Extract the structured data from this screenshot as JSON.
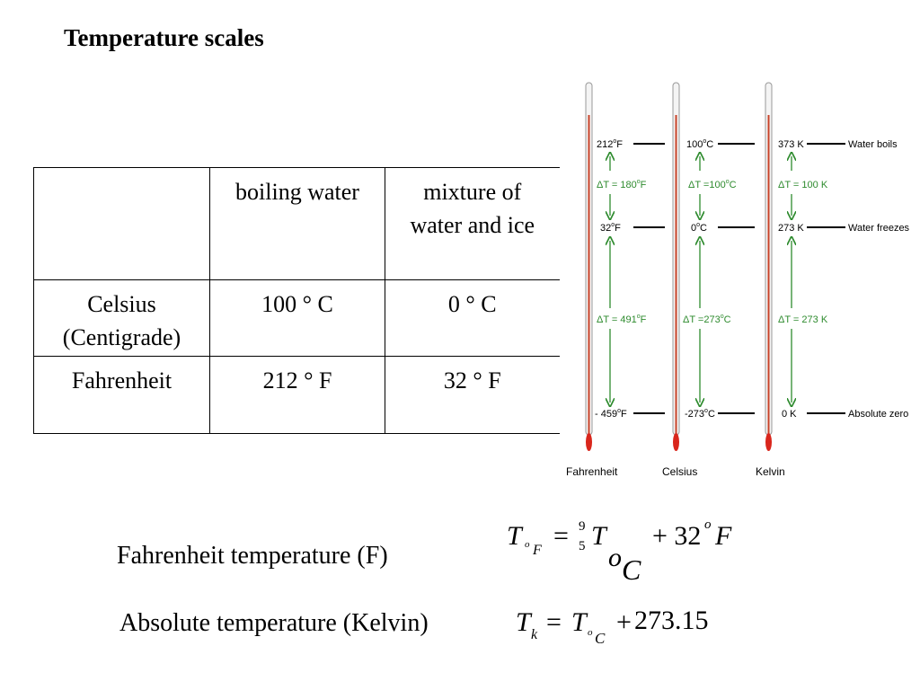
{
  "title": "Temperature  scales",
  "table": {
    "headers": [
      "",
      "boiling water",
      "mixture of water and ice"
    ],
    "rows": [
      {
        "scale": "Celsius (Centigrade)",
        "boiling": "100 ° C",
        "freezing": "0 ° C"
      },
      {
        "scale": "Fahrenheit",
        "boiling": "212 ° F",
        "freezing": "32 ° F"
      }
    ],
    "header_lines": {
      "boiling": "boiling water",
      "mix_1": "mixture of",
      "mix_2": "water and ice"
    },
    "row_lines": {
      "celsius_1": "Celsius",
      "celsius_2": "(Centigrade)"
    }
  },
  "thermometers": {
    "scales": [
      {
        "name": "Fahrenheit",
        "top": "212",
        "top_unit": "F",
        "mid": "32",
        "mid_unit": "F",
        "bottom": "- 459",
        "bottom_unit": "F",
        "dt_upper": "ΔT = 180",
        "dt_upper_unit": "F",
        "dt_lower": "ΔT = 491",
        "dt_lower_unit": "F"
      },
      {
        "name": "Celsius",
        "top": "100",
        "top_unit": "C",
        "mid": "0",
        "mid_unit": "C",
        "bottom": "-273",
        "bottom_unit": "C",
        "dt_upper": "ΔT =100",
        "dt_upper_unit": "C",
        "dt_lower": "ΔT =273",
        "dt_lower_unit": "C"
      },
      {
        "name": "Kelvin",
        "top": "373 K",
        "mid": "273 K",
        "bottom": "0 K",
        "dt_upper": "ΔT = 100  K",
        "dt_lower": "ΔT = 273  K"
      }
    ],
    "markers": [
      "Water boils",
      "Water freezes",
      "Absolute zero"
    ],
    "degree_mark": "o",
    "colors": {
      "tube": "#c8432a",
      "arrow": "#2e8b2e",
      "bulb": "#d9261c"
    }
  },
  "formulas": {
    "fahrenheit_label": "Fahrenheit temperature (F)",
    "kelvin_label": "Absolute temperature (Kelvin)",
    "f": {
      "T": "T",
      "sub_o": "o",
      "sub_F": "F",
      "eq": "=",
      "num": "9",
      "den": "5",
      "T2": "T",
      "sub2_o": "o",
      "sub2_C": "C",
      "plus": "+ 32",
      "sup": "o",
      "unit": "F"
    },
    "k": {
      "T": "T",
      "sub_k": "k",
      "eq": "=",
      "T2": "T",
      "sub_o": "o",
      "sub_C": "C",
      "plus": "+",
      "value": "273.15"
    }
  }
}
